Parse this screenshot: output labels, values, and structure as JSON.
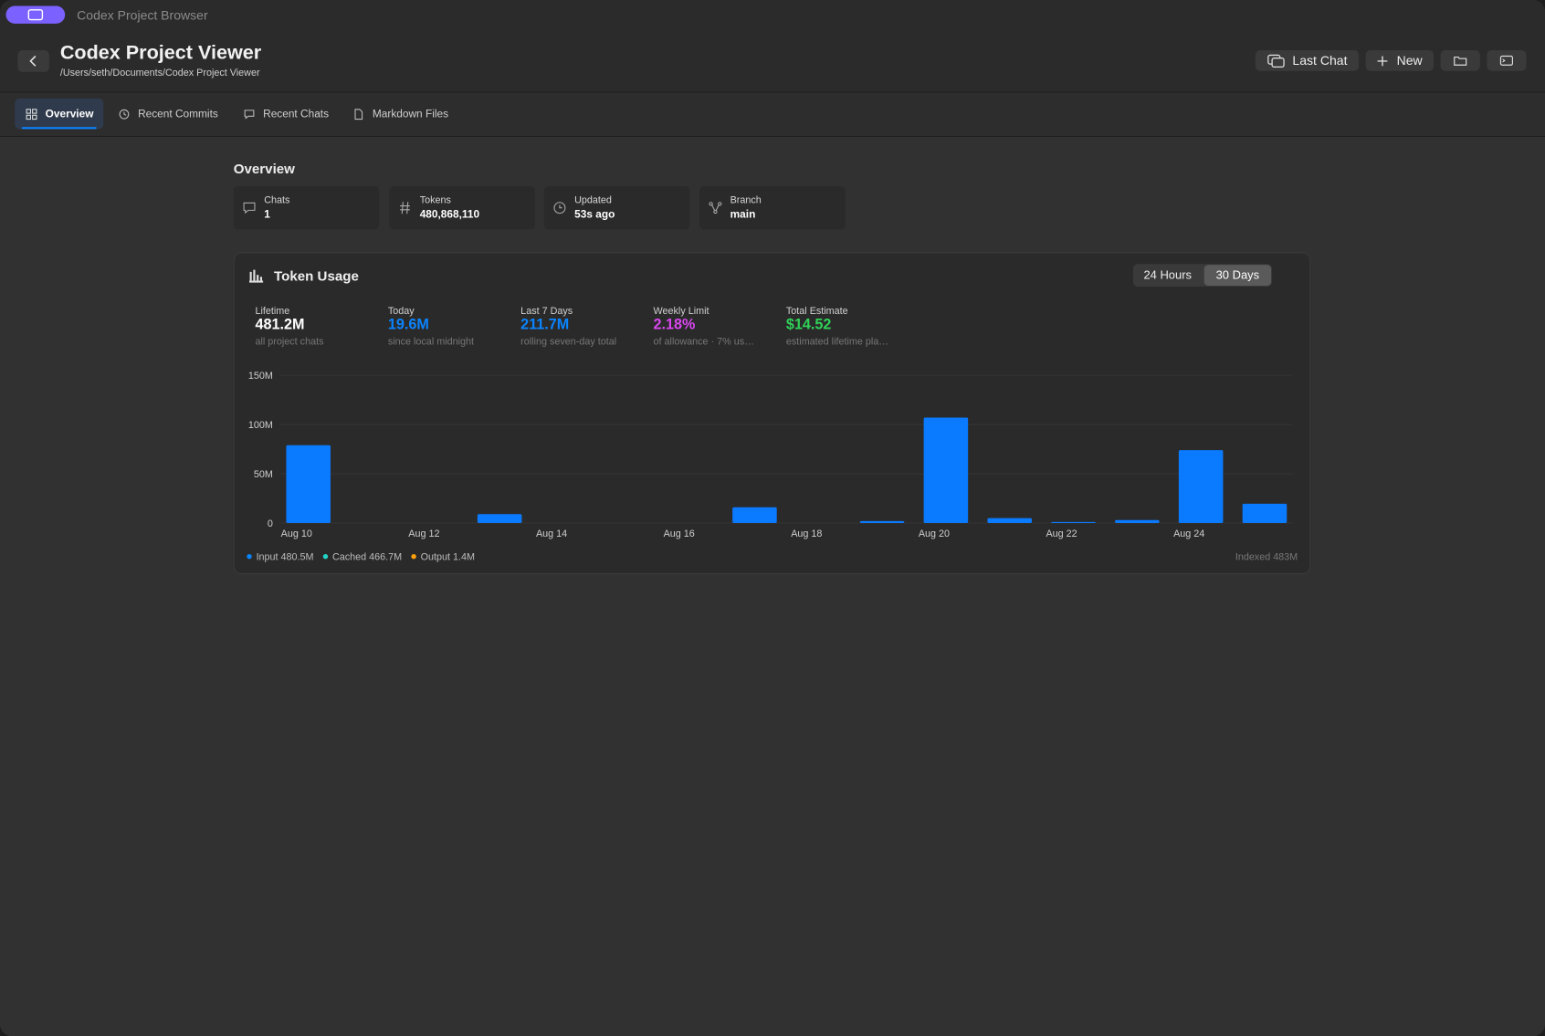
{
  "window": {
    "title": "Codex Project Browser"
  },
  "header": {
    "title": "Codex Project Viewer",
    "path": "/Users/seth/Documents/Codex Project Viewer",
    "buttons": [
      "Last Chat",
      "New"
    ]
  },
  "tabs": [
    "Overview",
    "Recent Commits",
    "Recent Chats",
    "Markdown Files"
  ],
  "overview": {
    "title": "Overview",
    "stats": [
      {
        "label": "Chats",
        "value": "1"
      },
      {
        "label": "Tokens",
        "value": "480,868,110"
      },
      {
        "label": "Updated",
        "value": "53s ago"
      },
      {
        "label": "Branch",
        "value": "main"
      }
    ]
  },
  "usage": {
    "title": "Token Usage",
    "ranges": [
      "24 Hours",
      "30 Days"
    ],
    "metrics": [
      {
        "label": "Lifetime",
        "value": "481.2M",
        "note": "all project chats",
        "color": "#ffffff"
      },
      {
        "label": "Today",
        "value": "19.6M",
        "note": "since local midnight",
        "color": "#0a84ff"
      },
      {
        "label": "Last 7 Days",
        "value": "211.7M",
        "note": "rolling seven-day total",
        "color": "#0a84ff"
      },
      {
        "label": "Weekly Limit",
        "value": "2.18%",
        "note": "of allowance · 7% us…",
        "color": "#d946ef"
      },
      {
        "label": "Total Estimate",
        "value": "$14.52",
        "note": "estimated lifetime pla…",
        "color": "#30d158"
      }
    ],
    "legend": [
      {
        "label": "Input 480.5M",
        "color": "#0a84ff"
      },
      {
        "label": "Cached 466.7M",
        "color": "#22d3c5"
      },
      {
        "label": "Output 1.4M",
        "color": "#ff9f0a"
      }
    ],
    "footer": "Indexed 483M"
  },
  "chart_data": {
    "type": "bar",
    "categories": [
      "Aug 10",
      null,
      "Aug 12",
      null,
      "Aug 14",
      null,
      "Aug 16",
      null,
      "Aug 18",
      null,
      "Aug 20",
      null,
      "Aug 22",
      null,
      "Aug 24",
      null
    ],
    "values": [
      79,
      0,
      0,
      9,
      0,
      0,
      0,
      16,
      0,
      2,
      107,
      5,
      1,
      3,
      74,
      19.6
    ],
    "color": "#0a7aff",
    "ylim": [
      0,
      150
    ],
    "yticks": [
      0,
      {
        "value": 50,
        "label": "50M"
      },
      {
        "value": 100,
        "label": "100M"
      },
      {
        "value": 150,
        "label": "150M"
      }
    ],
    "grid": true
  }
}
